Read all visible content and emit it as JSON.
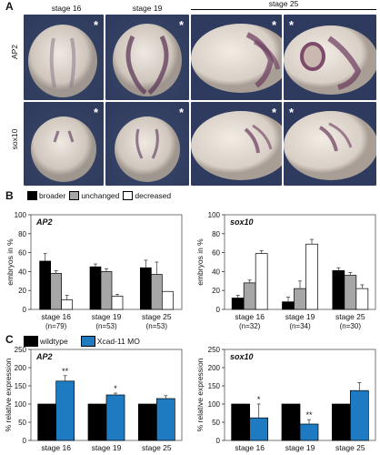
{
  "panel_A": {
    "letter": "A",
    "stages": [
      "stage 16",
      "stage 19",
      "stage 25"
    ],
    "rows": [
      "AP2",
      "sox10"
    ],
    "asterisk": "*"
  },
  "panel_B": {
    "letter": "B",
    "legend": [
      "broader",
      "unchanged",
      "decreased"
    ],
    "colors": {
      "broader": "#000000",
      "unchanged": "#a6a6a6",
      "decreased": "#ffffff"
    }
  },
  "panel_C": {
    "letter": "C",
    "legend": [
      "wildtype",
      "Xcad-11 MO"
    ],
    "colors": {
      "wildtype": "#000000",
      "mo": "#1f7bc1"
    }
  },
  "chart_data": [
    {
      "type": "bar",
      "title": "AP2",
      "ylabel": "embryos in %",
      "ylim": [
        0,
        100
      ],
      "yticks": [
        0,
        20,
        40,
        60,
        80,
        100
      ],
      "categories": [
        "stage 16",
        "stage 19",
        "stage 25"
      ],
      "category_n": [
        "(n=79)",
        "(n=53)",
        "(n=53)"
      ],
      "series": [
        {
          "name": "broader",
          "values": [
            51,
            45,
            44
          ],
          "errors": [
            8,
            3,
            8
          ]
        },
        {
          "name": "unchanged",
          "values": [
            38,
            40,
            37
          ],
          "errors": [
            3,
            3,
            13
          ]
        },
        {
          "name": "decreased",
          "values": [
            10,
            14,
            19
          ],
          "errors": [
            5,
            2,
            0
          ]
        }
      ]
    },
    {
      "type": "bar",
      "title": "sox10",
      "ylabel": "embryos in %",
      "ylim": [
        0,
        100
      ],
      "yticks": [
        0,
        20,
        40,
        60,
        80,
        100
      ],
      "categories": [
        "stage 16",
        "stage 19",
        "stage 25"
      ],
      "category_n": [
        "(n=32)",
        "(n=34)",
        "(n=30)"
      ],
      "series": [
        {
          "name": "broader",
          "values": [
            12,
            8,
            41
          ],
          "errors": [
            3,
            5,
            3
          ]
        },
        {
          "name": "unchanged",
          "values": [
            28,
            22,
            36
          ],
          "errors": [
            3,
            8,
            3
          ]
        },
        {
          "name": "decreased",
          "values": [
            59,
            69,
            22
          ],
          "errors": [
            3,
            5,
            4
          ]
        }
      ]
    },
    {
      "type": "bar",
      "title": "AP2",
      "ylabel": "% relative expression",
      "ylim": [
        0,
        250
      ],
      "yticks": [
        0,
        50,
        100,
        150,
        200,
        250
      ],
      "categories": [
        "stage 16",
        "stage 19",
        "stage 25"
      ],
      "significance": [
        "**",
        "*",
        ""
      ],
      "series": [
        {
          "name": "wildtype",
          "values": [
            100,
            100,
            100
          ],
          "errors": [
            0,
            0,
            0
          ]
        },
        {
          "name": "Xcad-11 MO",
          "values": [
            163,
            125,
            115
          ],
          "errors": [
            15,
            5,
            8
          ]
        }
      ]
    },
    {
      "type": "bar",
      "title": "sox10",
      "ylabel": "% relative expression",
      "ylim": [
        0,
        250
      ],
      "yticks": [
        0,
        50,
        100,
        150,
        200,
        250
      ],
      "categories": [
        "stage 16",
        "stage 19",
        "stage 25"
      ],
      "significance": [
        "*",
        "**",
        ""
      ],
      "series": [
        {
          "name": "wildtype",
          "values": [
            100,
            100,
            100
          ],
          "errors": [
            0,
            0,
            0
          ]
        },
        {
          "name": "Xcad-11 MO",
          "values": [
            62,
            45,
            137
          ],
          "errors": [
            38,
            12,
            22
          ]
        }
      ]
    }
  ]
}
